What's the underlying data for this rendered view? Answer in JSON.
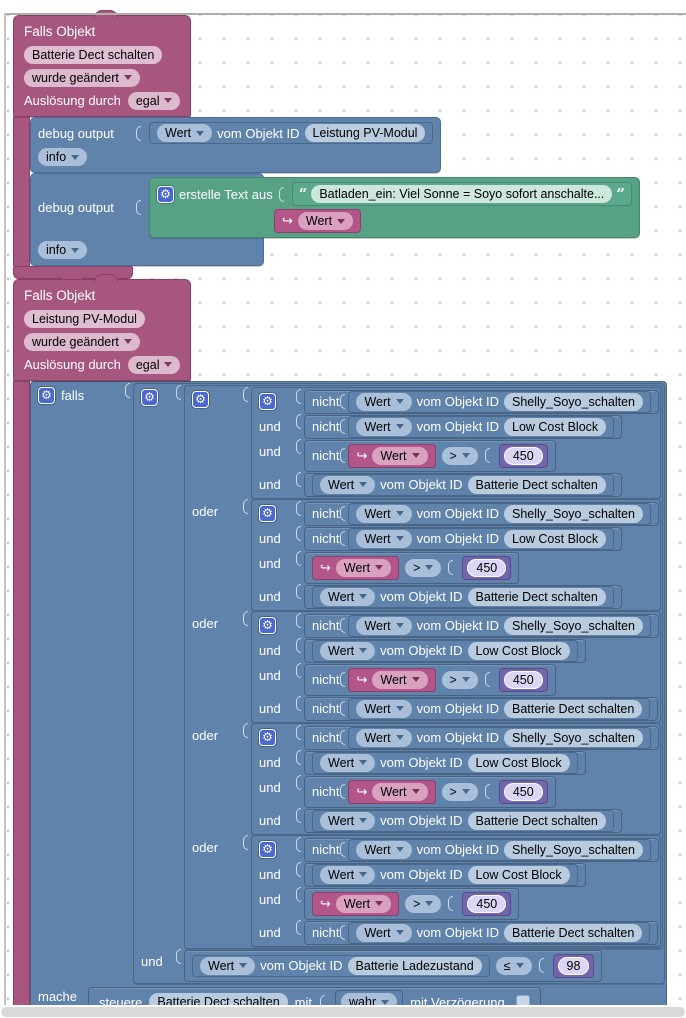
{
  "workspace": {
    "bg": "#ffffff",
    "grid_dot_color": "#c9c9c9",
    "colors": {
      "trigger_pink": "#a7567f",
      "logic_blue": "#6083ac",
      "text_green": "#57a184",
      "value_pink": "#b2568a",
      "number_purple": "#7365ab",
      "gear_blue": "#4b67d1"
    }
  },
  "trigger1": {
    "title": "Falls Objekt",
    "object": "Batterie Dect schalten",
    "change": "wurde geändert",
    "trigger_by_label": "Auslösung durch",
    "trigger_by": "egal"
  },
  "trigger2": {
    "title": "Falls Objekt",
    "object": "Leistung PV-Modul",
    "change": "wurde geändert",
    "trigger_by_label": "Auslösung durch",
    "trigger_by": "egal"
  },
  "debug1": {
    "label": "debug output",
    "level": "info",
    "value": {
      "wert": "Wert",
      "of": "vom Objekt ID",
      "object": "Leistung PV-Modul"
    }
  },
  "debug2": {
    "label": "debug output",
    "level": "info",
    "text_join": {
      "label": "erstelle Text aus",
      "quote_open": "“",
      "quote_close": "”",
      "text": "Batladen_ein: Viel Sonne = Soyo sofort anschalte...",
      "wert": "Wert"
    }
  },
  "falls": {
    "if_label": "falls",
    "do_label": "mache",
    "joiner_und": "und",
    "joiner_oder": "oder",
    "nicht": "nicht",
    "getter": {
      "wert": "Wert",
      "of": "vom Objekt ID"
    },
    "compare": {
      "op": ">",
      "value": "450"
    },
    "condition_groups": [
      {
        "joiner": "",
        "rows": [
          {
            "joiner": "",
            "nicht": true,
            "kind": "getter",
            "object": "Shelly_Soyo_schalten"
          },
          {
            "joiner": "und",
            "nicht": true,
            "kind": "getter",
            "object": "Low Cost Block"
          },
          {
            "joiner": "und",
            "nicht": true,
            "kind": "compare"
          },
          {
            "joiner": "und",
            "nicht": false,
            "kind": "getter",
            "object": "Batterie Dect schalten"
          }
        ]
      },
      {
        "joiner": "oder",
        "rows": [
          {
            "joiner": "",
            "nicht": true,
            "kind": "getter",
            "object": "Shelly_Soyo_schalten"
          },
          {
            "joiner": "und",
            "nicht": true,
            "kind": "getter",
            "object": "Low Cost Block"
          },
          {
            "joiner": "und",
            "nicht": false,
            "kind": "compare"
          },
          {
            "joiner": "und",
            "nicht": false,
            "kind": "getter",
            "object": "Batterie Dect schalten"
          }
        ]
      },
      {
        "joiner": "oder",
        "rows": [
          {
            "joiner": "",
            "nicht": true,
            "kind": "getter",
            "object": "Shelly_Soyo_schalten"
          },
          {
            "joiner": "und",
            "nicht": false,
            "kind": "getter",
            "object": "Low Cost Block"
          },
          {
            "joiner": "und",
            "nicht": true,
            "kind": "compare"
          },
          {
            "joiner": "und",
            "nicht": true,
            "kind": "getter",
            "object": "Batterie Dect schalten"
          }
        ]
      },
      {
        "joiner": "oder",
        "rows": [
          {
            "joiner": "",
            "nicht": true,
            "kind": "getter",
            "object": "Shelly_Soyo_schalten"
          },
          {
            "joiner": "und",
            "nicht": false,
            "kind": "getter",
            "object": "Low Cost Block"
          },
          {
            "joiner": "und",
            "nicht": true,
            "kind": "compare"
          },
          {
            "joiner": "und",
            "nicht": false,
            "kind": "getter",
            "object": "Batterie Dect schalten"
          }
        ]
      },
      {
        "joiner": "oder",
        "rows": [
          {
            "joiner": "",
            "nicht": true,
            "kind": "getter",
            "object": "Shelly_Soyo_schalten"
          },
          {
            "joiner": "und",
            "nicht": false,
            "kind": "getter",
            "object": "Low Cost Block"
          },
          {
            "joiner": "und",
            "nicht": false,
            "kind": "compare"
          },
          {
            "joiner": "und",
            "nicht": true,
            "kind": "getter",
            "object": "Batterie Dect schalten"
          }
        ]
      }
    ],
    "final_condition": {
      "joiner": "und",
      "object": "Batterie Ladezustand",
      "op": "≤",
      "value": "98"
    },
    "action": {
      "steuere": "steuere",
      "object": "Batterie Dect schalten",
      "mit": "mit",
      "value": "wahr",
      "delay_label": "mit Verzögerung"
    }
  }
}
